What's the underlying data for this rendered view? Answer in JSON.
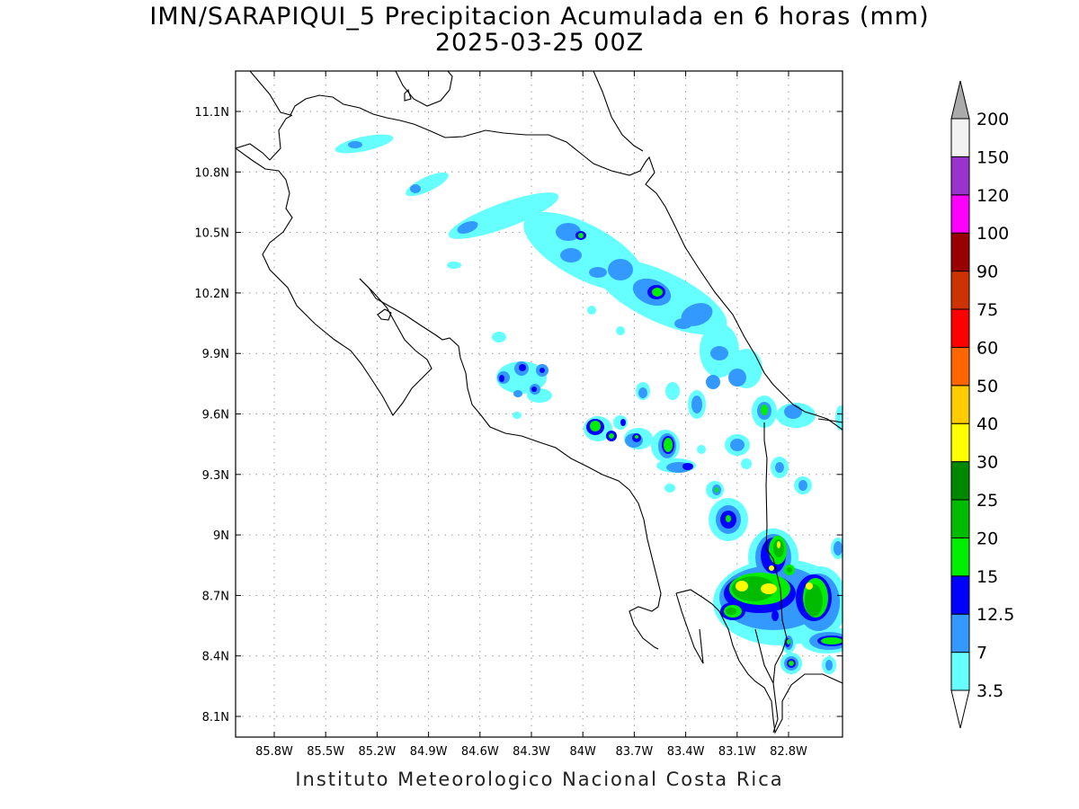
{
  "title": {
    "line1": "IMN/SARAPIQUI_5 Precipitacion Acumulada en 6 horas (mm)",
    "line2": "2025-03-25 00Z"
  },
  "footer": "Instituto Meteorologico Nacional Costa Rica",
  "axes": {
    "lon_ticks": [
      "85.8W",
      "85.5W",
      "85.2W",
      "84.9W",
      "84.6W",
      "84.3W",
      "84W",
      "83.7W",
      "83.4W",
      "83.1W",
      "82.8W"
    ],
    "lat_ticks": [
      "11.1N",
      "10.8N",
      "10.5N",
      "10.2N",
      "9.9N",
      "9.6N",
      "9.3N",
      "9N",
      "8.7N",
      "8.4N",
      "8.1N"
    ],
    "grid": true
  },
  "legend": {
    "labels": [
      "3.5",
      "7",
      "12.5",
      "15",
      "20",
      "25",
      "30",
      "40",
      "50",
      "60",
      "75",
      "90",
      "100",
      "120",
      "150",
      "200"
    ],
    "colors": [
      "#66ffff",
      "#3399ff",
      "#0000ff",
      "#00ee00",
      "#00bb00",
      "#008800",
      "#ffff00",
      "#ffcc00",
      "#ff6600",
      "#ff0000",
      "#cc3300",
      "#990000",
      "#ff00ff",
      "#9933cc",
      "#f2f2f2",
      "#aaaaaa"
    ],
    "placement": "right"
  },
  "precip_colors": {
    "c3_5": "#66ffff",
    "c7": "#3399ff",
    "c12_5": "#0000ff",
    "c15": "#00ee00",
    "c20": "#00bb00",
    "c25": "#008800",
    "c30": "#ffff00"
  }
}
